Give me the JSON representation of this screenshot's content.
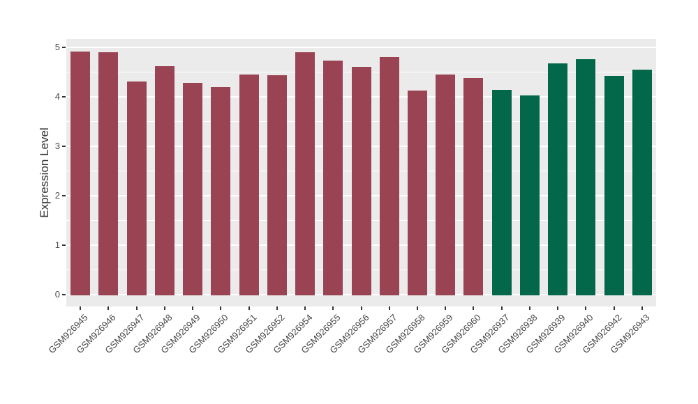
{
  "chart_data": {
    "type": "bar",
    "title": "",
    "xlabel": "",
    "ylabel": "Expression Level",
    "ylim": [
      0,
      5
    ],
    "yticks": [
      0,
      1,
      2,
      3,
      4,
      5
    ],
    "grid": {
      "major": true,
      "minor": true,
      "color": "#FFFFFF"
    },
    "legend_position": "none",
    "categories": [
      "GSM926945",
      "GSM926946",
      "GSM926947",
      "GSM926948",
      "GSM926949",
      "GSM926950",
      "GSM926951",
      "GSM926952",
      "GSM926954",
      "GSM926955",
      "GSM926956",
      "GSM926957",
      "GSM926958",
      "GSM926959",
      "GSM926960",
      "GSM926937",
      "GSM926938",
      "GSM926939",
      "GSM926940",
      "GSM926942",
      "GSM926943"
    ],
    "values": [
      4.92,
      4.91,
      4.31,
      4.63,
      4.29,
      4.2,
      4.45,
      4.44,
      4.9,
      4.74,
      4.61,
      4.81,
      4.13,
      4.45,
      4.39,
      4.14,
      4.03,
      4.68,
      4.77,
      4.43,
      4.56
    ],
    "groups": [
      "maroon",
      "maroon",
      "maroon",
      "maroon",
      "maroon",
      "maroon",
      "maroon",
      "maroon",
      "maroon",
      "maroon",
      "maroon",
      "maroon",
      "maroon",
      "maroon",
      "maroon",
      "green",
      "green",
      "green",
      "green",
      "green",
      "green"
    ],
    "group_colors": {
      "maroon": "#9A4453",
      "green": "#03684A"
    }
  },
  "style": {
    "figure_background": "#FFFFFF",
    "panel_background": "#EBEBEB",
    "grid_color": "#FFFFFF",
    "axis_text_color": "#4D4D4D",
    "axis_title_color": "#333333",
    "tick_color": "#333333"
  }
}
